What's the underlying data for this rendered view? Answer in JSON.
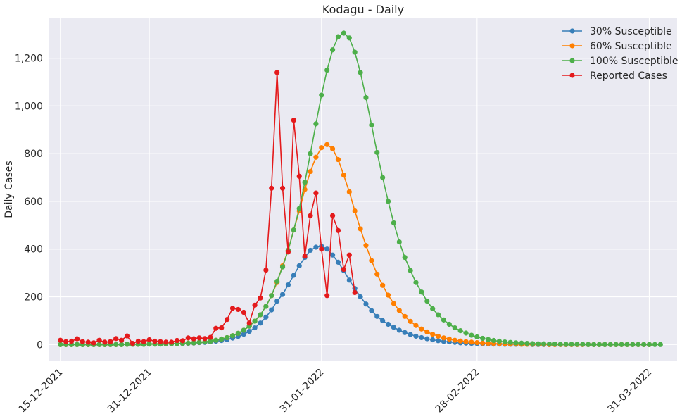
{
  "chart_data": {
    "type": "line",
    "title": "Kodagu - Daily",
    "xlabel": "",
    "ylabel": "Daily Cases",
    "x_start": "15-12-2021",
    "x_step_days": 1,
    "xlim": [
      "13-12-2021",
      "05-04-2022"
    ],
    "ylim": [
      -70,
      1370
    ],
    "x_ticks": [
      {
        "date": "15-12-2021",
        "label": "15-12-2021"
      },
      {
        "date": "31-12-2021",
        "label": "31-12-2021"
      },
      {
        "date": "31-01-2022",
        "label": "31-01-2022"
      },
      {
        "date": "28-02-2022",
        "label": "28-02-2022"
      },
      {
        "date": "31-03-2022",
        "label": "31-03-2022"
      }
    ],
    "y_ticks": [
      {
        "value": 0,
        "label": "0"
      },
      {
        "value": 200,
        "label": "200"
      },
      {
        "value": 400,
        "label": "400"
      },
      {
        "value": 600,
        "label": "600"
      },
      {
        "value": 800,
        "label": "800"
      },
      {
        "value": 1000,
        "label": "1,000"
      },
      {
        "value": 1200,
        "label": "1,200"
      }
    ],
    "grid": true,
    "legend_position": "top-right",
    "series": [
      {
        "name": "30% Susceptible",
        "color": "#377eb8",
        "values": [
          0,
          0,
          0,
          0,
          0,
          0,
          0,
          0,
          0,
          0,
          0,
          0,
          1,
          1,
          1,
          1,
          2,
          2,
          2,
          3,
          3,
          4,
          4,
          5,
          6,
          8,
          9,
          11,
          14,
          17,
          21,
          27,
          34,
          43,
          55,
          70,
          90,
          115,
          145,
          182,
          210,
          250,
          290,
          330,
          365,
          395,
          408,
          412,
          400,
          375,
          345,
          310,
          270,
          235,
          200,
          170,
          142,
          118,
          100,
          85,
          72,
          60,
          50,
          42,
          35,
          29,
          24,
          20,
          16,
          13,
          11,
          9,
          7,
          6,
          5,
          4,
          3,
          3,
          2,
          2,
          1,
          1,
          1,
          1,
          1,
          0,
          0,
          0,
          0,
          0,
          0,
          0,
          0,
          0,
          0,
          0,
          0,
          0,
          0,
          0,
          0,
          0,
          0,
          0,
          0,
          0,
          0
        ]
      },
      {
        "name": "60% Susceptible",
        "color": "#ff7f00",
        "values": [
          0,
          0,
          0,
          0,
          0,
          0,
          0,
          0,
          0,
          0,
          0,
          0,
          1,
          1,
          1,
          1,
          2,
          2,
          2,
          3,
          4,
          4,
          5,
          6,
          7,
          9,
          11,
          14,
          18,
          23,
          29,
          37,
          47,
          60,
          77,
          98,
          125,
          160,
          205,
          260,
          330,
          395,
          480,
          560,
          650,
          725,
          785,
          825,
          838,
          820,
          775,
          710,
          640,
          560,
          485,
          415,
          352,
          295,
          248,
          207,
          172,
          143,
          118,
          97,
          80,
          65,
          53,
          43,
          35,
          28,
          23,
          18,
          15,
          12,
          10,
          8,
          6,
          5,
          4,
          3,
          3,
          2,
          2,
          1,
          1,
          1,
          1,
          1,
          0,
          0,
          0,
          0,
          0,
          0,
          0,
          0,
          0,
          0,
          0,
          0,
          0,
          0,
          0,
          0,
          0,
          0,
          0
        ]
      },
      {
        "name": "100% Susceptible",
        "color": "#4daf4a",
        "values": [
          0,
          0,
          0,
          0,
          0,
          0,
          0,
          0,
          0,
          0,
          0,
          0,
          1,
          1,
          1,
          1,
          2,
          2,
          2,
          3,
          4,
          4,
          5,
          6,
          7,
          9,
          11,
          14,
          18,
          23,
          29,
          37,
          47,
          60,
          77,
          98,
          125,
          160,
          205,
          265,
          325,
          395,
          480,
          570,
          680,
          800,
          925,
          1045,
          1150,
          1235,
          1290,
          1305,
          1285,
          1225,
          1140,
          1035,
          920,
          805,
          700,
          600,
          510,
          430,
          365,
          310,
          260,
          220,
          182,
          150,
          125,
          103,
          85,
          70,
          58,
          48,
          39,
          32,
          26,
          21,
          17,
          14,
          11,
          9,
          7,
          6,
          5,
          4,
          3,
          3,
          2,
          2,
          1,
          1,
          1,
          1,
          1,
          0,
          0,
          0,
          0,
          0,
          0,
          0,
          0,
          0,
          0,
          0,
          0,
          0,
          0
        ]
      },
      {
        "name": "Reported Cases",
        "color": "#e41a1c",
        "values": [
          18,
          12,
          14,
          24,
          12,
          10,
          7,
          18,
          10,
          12,
          25,
          18,
          36,
          5,
          14,
          12,
          20,
          14,
          12,
          10,
          10,
          17,
          16,
          28,
          24,
          28,
          25,
          30,
          68,
          70,
          105,
          152,
          147,
          135,
          90,
          165,
          195,
          312,
          655,
          1140,
          655,
          388,
          940,
          705,
          370,
          540,
          635,
          400,
          205,
          540,
          478,
          315,
          375,
          218
        ]
      }
    ]
  }
}
